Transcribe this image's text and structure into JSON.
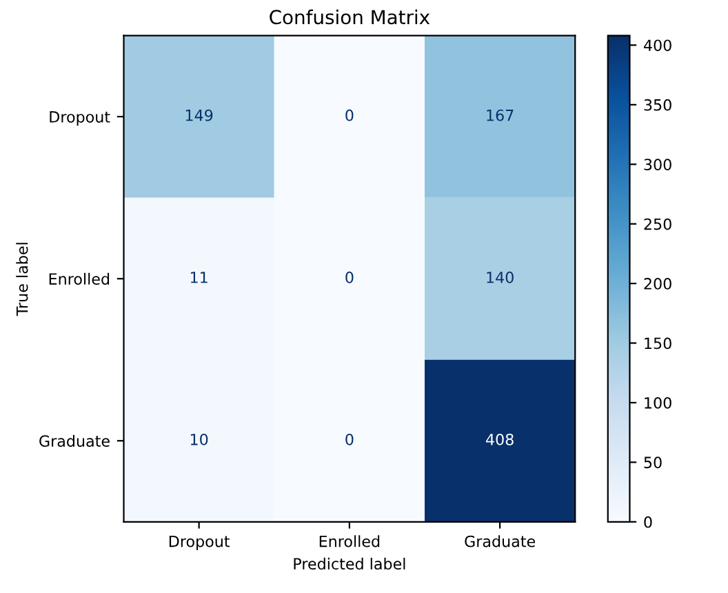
{
  "chart_data": {
    "type": "heatmap",
    "title": "Confusion Matrix",
    "xlabel": "Predicted label",
    "ylabel": "True label",
    "categories": [
      "Dropout",
      "Enrolled",
      "Graduate"
    ],
    "y_categories": [
      "Dropout",
      "Enrolled",
      "Graduate"
    ],
    "cells": [
      [
        149,
        0,
        167
      ],
      [
        11,
        0,
        140
      ],
      [
        10,
        0,
        408
      ]
    ],
    "clim": [
      0,
      408
    ],
    "cticks": [
      0,
      50,
      100,
      150,
      200,
      250,
      300,
      350,
      400
    ],
    "data_labels": true
  }
}
